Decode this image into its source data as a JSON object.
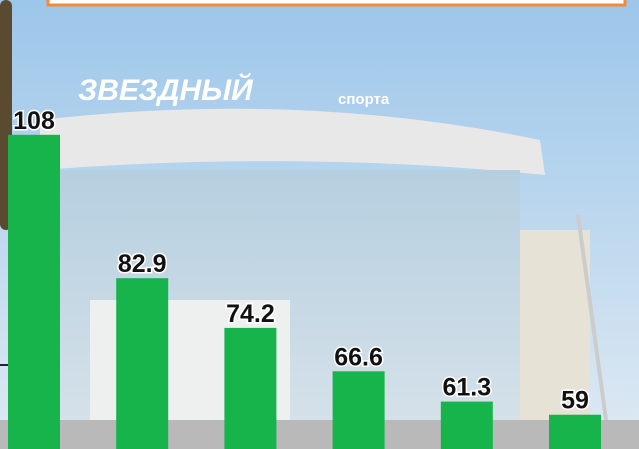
{
  "chart_data": {
    "type": "bar",
    "values": [
      108,
      82.9,
      74.2,
      66.6,
      61.3,
      59
    ],
    "color": "#17b44c",
    "ylim": [
      53,
      131.6
    ]
  },
  "background": {
    "sign": "ЗВЕЗДНЫЙ",
    "sign_subtitle": "спорта"
  }
}
